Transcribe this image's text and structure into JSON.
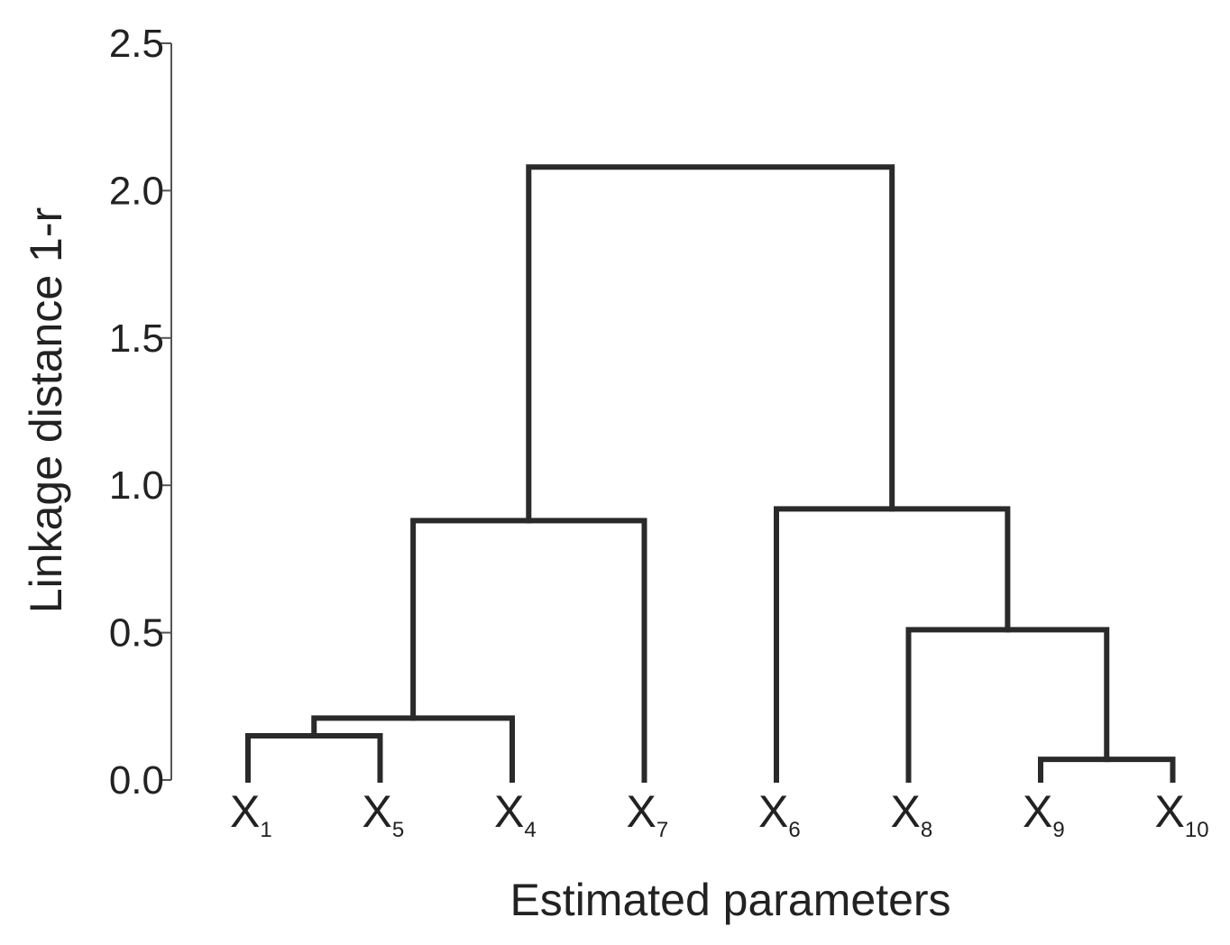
{
  "chart_data": {
    "type": "dendrogram",
    "title": "",
    "xlabel": "Estimated parameters",
    "ylabel": "Linkage distance 1-r",
    "ylim": [
      0,
      2.5
    ],
    "yticks": [
      "0.0",
      "0.5",
      "1.0",
      "1.5",
      "2.0",
      "2.5"
    ],
    "leaves": [
      {
        "base": "X",
        "sub": "1"
      },
      {
        "base": "X",
        "sub": "5"
      },
      {
        "base": "X",
        "sub": "4"
      },
      {
        "base": "X",
        "sub": "7"
      },
      {
        "base": "X",
        "sub": "6"
      },
      {
        "base": "X",
        "sub": "8"
      },
      {
        "base": "X",
        "sub": "9"
      },
      {
        "base": "X",
        "sub": "10"
      }
    ],
    "merges": [
      {
        "id": "c1",
        "left": "X1",
        "right": "X5",
        "height": 0.15
      },
      {
        "id": "c2",
        "left": "c1",
        "right": "X4",
        "height": 0.21
      },
      {
        "id": "c3",
        "left": "c2",
        "right": "X7",
        "height": 0.88
      },
      {
        "id": "c4",
        "left": "X9",
        "right": "X10",
        "height": 0.07
      },
      {
        "id": "c5",
        "left": "X8",
        "right": "c4",
        "height": 0.51
      },
      {
        "id": "c6",
        "left": "X6",
        "right": "c5",
        "height": 0.92
      },
      {
        "id": "c7",
        "left": "c3",
        "right": "c6",
        "height": 2.08
      }
    ],
    "grid": false,
    "colors": {
      "links": "#2a2a2a",
      "axis": "#555555",
      "text": "#222222"
    }
  }
}
